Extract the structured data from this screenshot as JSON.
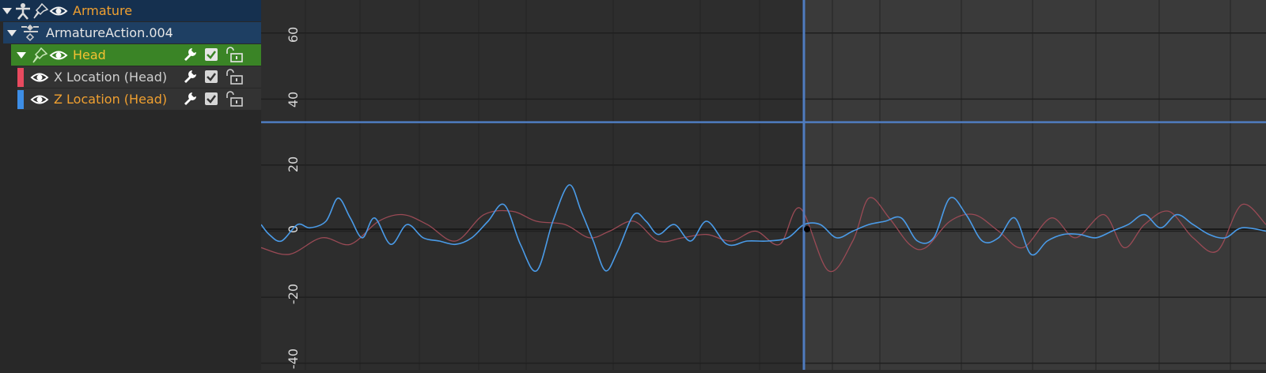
{
  "outliner": {
    "object": {
      "label": "Armature",
      "icons": [
        "expand-arrow-icon",
        "armature-icon",
        "pin-icon",
        "eye-icon"
      ]
    },
    "action": {
      "label": "ArmatureAction.004",
      "icons": [
        "expand-arrow-icon",
        "action-icon"
      ]
    },
    "group": {
      "label": "Head",
      "icons": [
        "expand-arrow-icon",
        "pin-icon",
        "eye-icon",
        "wrench-icon",
        "checkbox-icon",
        "lock-icon"
      ]
    },
    "channels": [
      {
        "label": "X Location (Head)",
        "color": "#e84a5f",
        "selected": false
      },
      {
        "label": "Z Location (Head)",
        "color": "#3d8ee6",
        "selected": true
      }
    ]
  },
  "graph": {
    "y_ticks": [
      "60",
      "40",
      "20",
      "0",
      "-20",
      "-40"
    ],
    "cursor_value": 33,
    "colors": {
      "x_curve": "#9a4a55",
      "z_curve": "#4a9be8",
      "cursor": "#4f7cc0"
    }
  },
  "chart_data": {
    "type": "line",
    "ylim": [
      -42,
      70
    ],
    "xlim": [
      0,
      1240
    ],
    "series": [
      {
        "x": [
          0,
          35,
          75,
          110,
          145,
          175,
          205,
          240,
          275,
          310,
          340,
          375,
          405,
          430,
          460,
          490,
          520,
          550,
          580,
          610,
          640,
          665,
          700,
          730,
          750,
          775,
          800,
          820,
          850,
          880,
          910,
          940,
          975,
          1005,
          1040,
          1065,
          1090,
          1120,
          1150,
          1180,
          1210,
          1240
        ],
        "y": [
          -5,
          -7,
          -2,
          -4,
          3,
          5,
          2,
          -3,
          5,
          6,
          3,
          2,
          -2,
          0,
          3,
          -3,
          -2,
          -1,
          -3,
          0,
          -4,
          7,
          -12,
          -3,
          10,
          4,
          -4,
          -5,
          3,
          5,
          0,
          -5,
          4,
          -2,
          5,
          -5,
          2,
          6,
          -2,
          -6,
          8,
          2
        ]
      },
      {
        "x": [
          0,
          10,
          25,
          45,
          60,
          80,
          95,
          110,
          125,
          140,
          160,
          180,
          200,
          220,
          240,
          260,
          280,
          300,
          320,
          340,
          360,
          380,
          395,
          410,
          425,
          440,
          460,
          475,
          490,
          510,
          530,
          550,
          575,
          600,
          625,
          650,
          670,
          690,
          710,
          730,
          750,
          770,
          790,
          810,
          830,
          850,
          870,
          890,
          910,
          930,
          950,
          970,
          990,
          1010,
          1030,
          1050,
          1070,
          1090,
          1110,
          1130,
          1150,
          1170,
          1190,
          1210,
          1240
        ],
        "y": [
          2,
          -1,
          -3,
          2,
          1,
          3,
          10,
          4,
          -2,
          4,
          -4,
          2,
          -2,
          -3,
          -4,
          -2,
          3,
          8,
          -4,
          -12,
          3,
          14,
          6,
          -3,
          -12,
          -6,
          5,
          3,
          -1,
          2,
          -3,
          3,
          -4,
          -3,
          -3,
          -2,
          2,
          2,
          -2,
          0,
          2,
          3,
          4,
          -3,
          -2,
          10,
          5,
          -3,
          -2,
          4,
          -7,
          -3,
          -1,
          -1,
          -2,
          0,
          2,
          5,
          1,
          5,
          2,
          -1,
          -2,
          1,
          0
        ]
      }
    ]
  }
}
